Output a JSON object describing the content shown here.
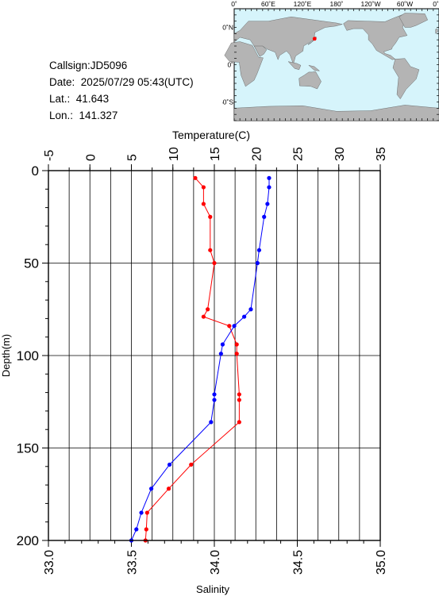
{
  "header": {
    "callsign_label": "Callsign:",
    "callsign": "JD5096",
    "date_label": "Date:",
    "date": "2025/07/29 05:43(UTC)",
    "lat_label": "Lat.:",
    "lat": "41.643",
    "lon_label": "Lon.:",
    "lon": "141.327"
  },
  "map": {
    "top_labels": [
      "0˚",
      "60˚E",
      "120˚E",
      "180˚",
      "120˚W",
      "60˚W",
      "0˚"
    ],
    "left_labels": [
      "60˚N",
      "0˚",
      "60˚S"
    ],
    "ocean_color": "#d6f4fb",
    "land_color": "#b4b4b4",
    "marker_color": "#ff0000",
    "station": {
      "lat": 41.643,
      "lon": 141.327
    }
  },
  "chart_data": {
    "type": "line",
    "top_axis": {
      "label": "Temperature(C)",
      "range": [
        -5,
        35
      ],
      "ticks": [
        "-5",
        "0",
        "5",
        "10",
        "15",
        "20",
        "25",
        "30",
        "35"
      ]
    },
    "bottom_axis": {
      "label": "Salinity",
      "range": [
        33.0,
        35.0
      ],
      "ticks": [
        "33.0",
        "33.5",
        "34.0",
        "34.5",
        "35.0"
      ]
    },
    "y_axis": {
      "label": "Depth(m)",
      "range": [
        0,
        200
      ],
      "inverted": true,
      "ticks": [
        "0",
        "50",
        "100",
        "150",
        "200"
      ]
    },
    "grid": true,
    "series": [
      {
        "axis": "temperature",
        "color": "#ff0000",
        "points": [
          {
            "value": 12.7,
            "depth": 4
          },
          {
            "value": 13.7,
            "depth": 9
          },
          {
            "value": 13.7,
            "depth": 18
          },
          {
            "value": 14.5,
            "depth": 25
          },
          {
            "value": 14.5,
            "depth": 43
          },
          {
            "value": 15.0,
            "depth": 50
          },
          {
            "value": 14.2,
            "depth": 75
          },
          {
            "value": 13.7,
            "depth": 79
          },
          {
            "value": 16.8,
            "depth": 84
          },
          {
            "value": 17.7,
            "depth": 94
          },
          {
            "value": 17.7,
            "depth": 99
          },
          {
            "value": 18.0,
            "depth": 121
          },
          {
            "value": 18.0,
            "depth": 124
          },
          {
            "value": 18.0,
            "depth": 136
          },
          {
            "value": 12.2,
            "depth": 159
          },
          {
            "value": 9.5,
            "depth": 172
          },
          {
            "value": 6.9,
            "depth": 185
          },
          {
            "value": 6.8,
            "depth": 194
          },
          {
            "value": 6.7,
            "depth": 200
          }
        ]
      },
      {
        "axis": "salinity",
        "color": "#0000ff",
        "points": [
          {
            "value": 34.33,
            "depth": 4
          },
          {
            "value": 34.33,
            "depth": 9
          },
          {
            "value": 34.32,
            "depth": 18
          },
          {
            "value": 34.3,
            "depth": 25
          },
          {
            "value": 34.27,
            "depth": 43
          },
          {
            "value": 34.26,
            "depth": 50
          },
          {
            "value": 34.22,
            "depth": 75
          },
          {
            "value": 34.18,
            "depth": 79
          },
          {
            "value": 34.12,
            "depth": 84
          },
          {
            "value": 34.05,
            "depth": 94
          },
          {
            "value": 34.04,
            "depth": 99
          },
          {
            "value": 34.0,
            "depth": 121
          },
          {
            "value": 34.0,
            "depth": 124
          },
          {
            "value": 33.98,
            "depth": 136
          },
          {
            "value": 33.73,
            "depth": 159
          },
          {
            "value": 33.62,
            "depth": 172
          },
          {
            "value": 33.56,
            "depth": 185
          },
          {
            "value": 33.53,
            "depth": 194
          },
          {
            "value": 33.5,
            "depth": 200
          }
        ]
      }
    ]
  }
}
